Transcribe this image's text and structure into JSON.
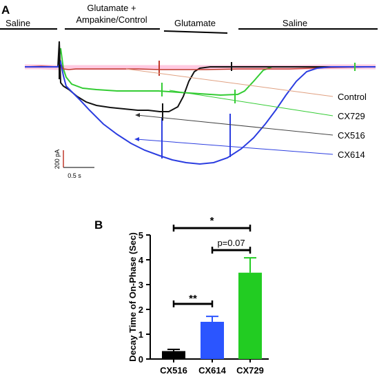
{
  "panel_a": {
    "letter": "A",
    "protocol": {
      "saline_1": "Saline",
      "glutamate_ampakine_line1": "Glutamate +",
      "glutamate_ampakine_line2": "Ampakine/Control",
      "glutamate": "Glutamate",
      "saline_2": "Saline"
    },
    "scale_bar": {
      "current": "200 pA",
      "time": "0.5 s"
    },
    "trace_labels": [
      "Control",
      "CX729",
      "CX516",
      "CX614"
    ],
    "colors": {
      "Control": "#c0392b",
      "CX729": "#33cc33",
      "CX516": "#111111",
      "CX614": "#2b3de0",
      "pink_overlay": "#ff9cc8"
    }
  },
  "panel_b": {
    "letter": "B",
    "significance": [
      {
        "label": "*",
        "from": "CX516",
        "to": "CX729"
      },
      {
        "label": "p=0.07",
        "from": "CX614",
        "to": "CX729"
      },
      {
        "label": "**",
        "from": "CX516",
        "to": "CX614"
      }
    ]
  },
  "chart_data": {
    "type": "bar",
    "categories": [
      "CX516",
      "CX614",
      "CX729"
    ],
    "values": [
      0.32,
      1.5,
      3.48
    ],
    "errors": [
      0.07,
      0.22,
      0.6
    ],
    "colors": [
      "#000000",
      "#2b55ff",
      "#22cc22"
    ],
    "title": "",
    "xlabel": "",
    "ylabel": "Decay Time of On-Phase (Sec)",
    "ylim": [
      0,
      5
    ],
    "yticks": [
      0,
      1,
      2,
      3,
      4,
      5
    ],
    "grid": false
  }
}
